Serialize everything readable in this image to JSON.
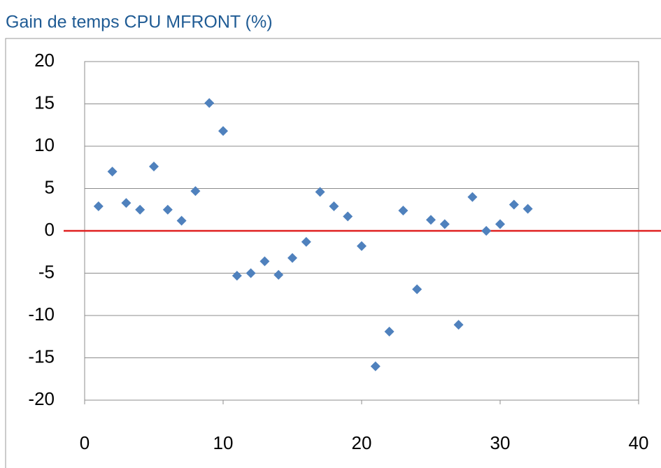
{
  "chart_data": {
    "type": "scatter",
    "title": "Gain de temps CPU MFRONT (%)",
    "series": [
      {
        "name": null,
        "color": "#4f81bd",
        "x": [
          1,
          2,
          3,
          4,
          5,
          6,
          7,
          8,
          9,
          10,
          11,
          12,
          13,
          14,
          15,
          16,
          17,
          18,
          19,
          20,
          21,
          22,
          23,
          24,
          25,
          26,
          27,
          28,
          29,
          30,
          31,
          32
        ],
        "values": [
          2.9,
          7.0,
          3.3,
          2.5,
          7.6,
          2.5,
          1.2,
          4.7,
          15.1,
          11.8,
          -5.3,
          -5.0,
          -3.6,
          -5.2,
          -3.2,
          -1.3,
          4.6,
          2.9,
          1.7,
          -1.8,
          -16.0,
          -11.9,
          2.4,
          -6.9,
          1.3,
          0.8,
          -11.1,
          4.0,
          0.0,
          0.8,
          3.1,
          2.6
        ]
      }
    ],
    "xlim": [
      0,
      40
    ],
    "xticks": [
      0,
      10,
      20,
      30,
      40
    ],
    "ylim": [
      -20,
      20
    ],
    "yticks": [
      -20,
      -15,
      -10,
      -5,
      0,
      5,
      10,
      15,
      20
    ],
    "grid": true,
    "reference_line": {
      "value": 0,
      "color": "#e02020"
    }
  }
}
